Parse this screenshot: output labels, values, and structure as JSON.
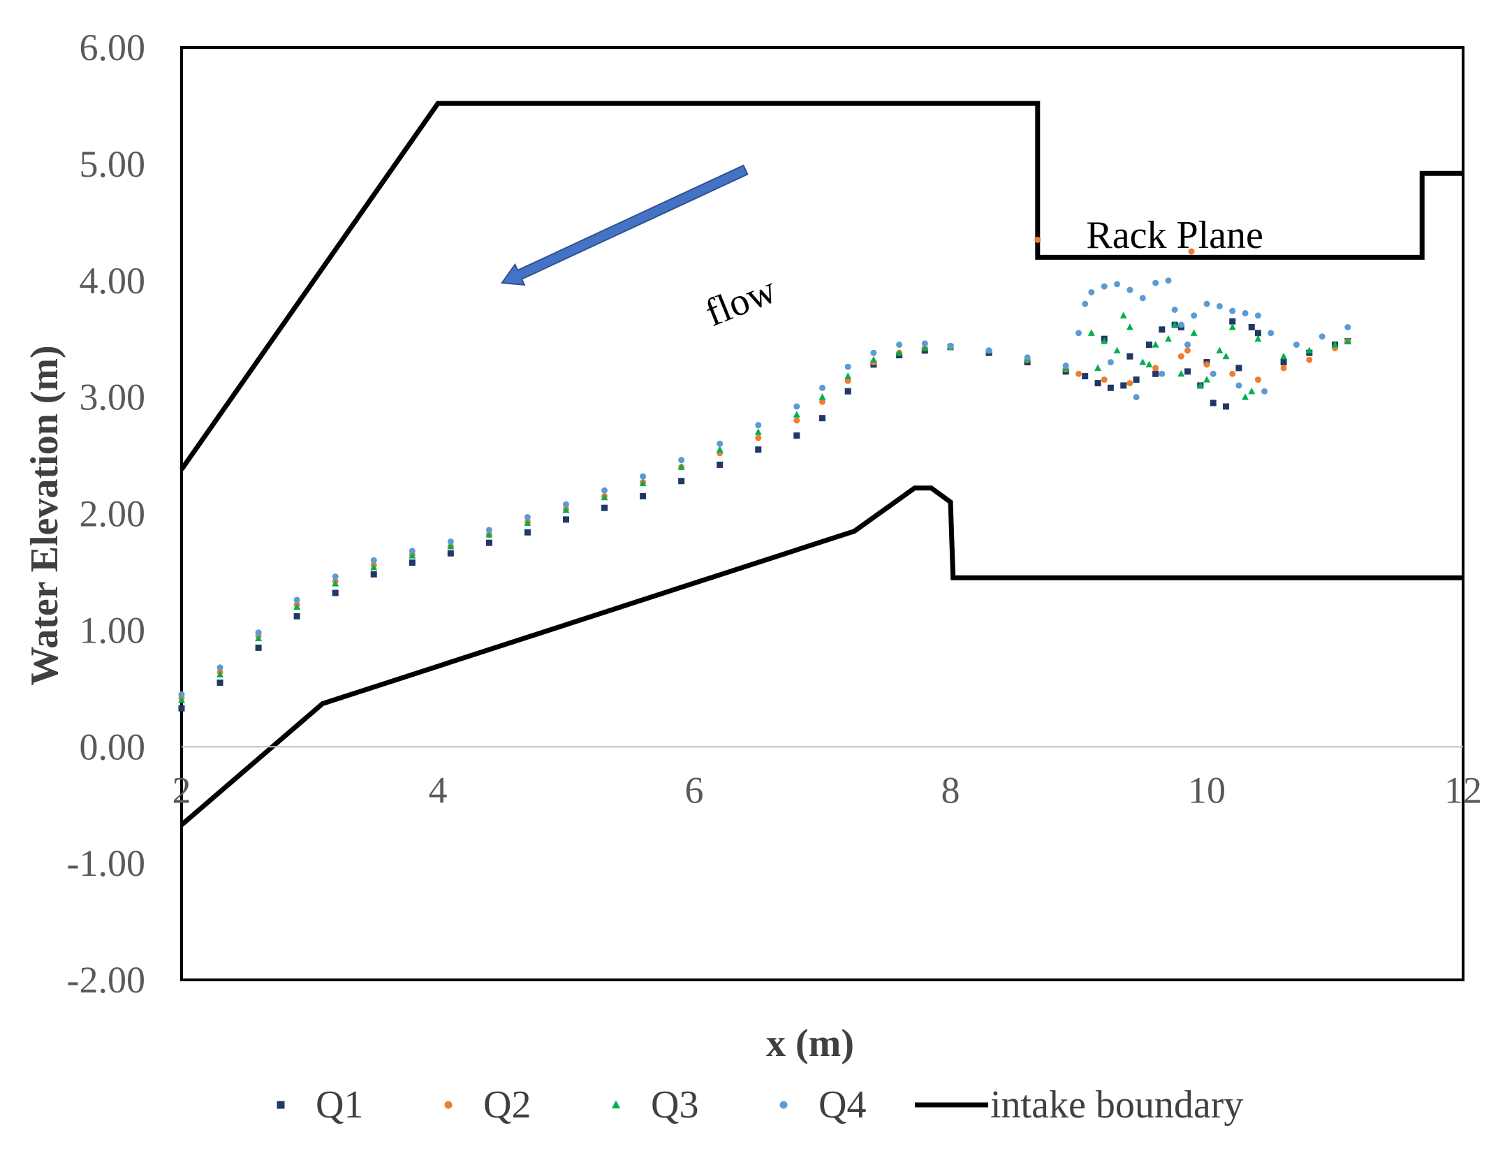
{
  "chart_data": {
    "type": "scatter",
    "xlabel": "x (m)",
    "ylabel": "Water Elevation (m)",
    "xlim": [
      2,
      12
    ],
    "ylim": [
      -2,
      6
    ],
    "x_ticks": [
      {
        "value": 2,
        "label": "2"
      },
      {
        "value": 4,
        "label": "4"
      },
      {
        "value": 6,
        "label": "6"
      },
      {
        "value": 8,
        "label": "8"
      },
      {
        "value": 10,
        "label": "10"
      },
      {
        "value": 12,
        "label": "12"
      }
    ],
    "y_ticks": [
      {
        "value": 6,
        "label": "6.00"
      },
      {
        "value": 5,
        "label": "5.00"
      },
      {
        "value": 4,
        "label": "4.00"
      },
      {
        "value": 3,
        "label": "3.00"
      },
      {
        "value": 2,
        "label": "2.00"
      },
      {
        "value": 1,
        "label": "1.00"
      },
      {
        "value": 0,
        "label": "0.00"
      },
      {
        "value": -1,
        "label": "-1.00"
      },
      {
        "value": -2,
        "label": "-2.00"
      }
    ],
    "gridlines": false,
    "legend_position": "bottom",
    "annotations": [
      {
        "text": "Rack Plane",
        "x": 9.75,
        "y": 4.28
      },
      {
        "text": "flow",
        "x": 6.4,
        "y": 3.72,
        "arrow_from": [
          6.4,
          4.95
        ],
        "arrow_to": [
          4.5,
          3.98
        ]
      }
    ],
    "series": [
      {
        "name": "Q1",
        "marker": "square",
        "color": "#203864",
        "x": [
          2.0,
          2.3,
          2.6,
          2.9,
          3.2,
          3.5,
          3.8,
          4.1,
          4.4,
          4.7,
          5.0,
          5.3,
          5.6,
          5.9,
          6.2,
          6.5,
          6.8,
          7.0,
          7.2,
          7.4,
          7.6,
          7.8,
          8.0,
          8.3,
          8.6,
          8.9,
          9.05,
          9.15,
          9.25,
          9.35,
          9.45,
          9.55,
          9.65,
          9.75,
          9.85,
          9.95,
          10.05,
          10.15,
          10.25,
          10.35,
          9.2,
          9.4,
          9.6,
          9.8,
          10.0,
          10.2,
          10.4,
          10.6,
          10.8,
          11.0,
          11.1
        ],
        "y": [
          0.33,
          0.55,
          0.85,
          1.12,
          1.32,
          1.48,
          1.58,
          1.66,
          1.75,
          1.84,
          1.95,
          2.05,
          2.15,
          2.28,
          2.42,
          2.55,
          2.67,
          2.82,
          3.05,
          3.28,
          3.36,
          3.4,
          3.43,
          3.38,
          3.3,
          3.22,
          3.18,
          3.12,
          3.08,
          3.1,
          3.15,
          3.45,
          3.58,
          3.62,
          3.22,
          3.1,
          2.95,
          2.92,
          3.25,
          3.6,
          3.5,
          3.35,
          3.2,
          3.6,
          3.3,
          3.65,
          3.55,
          3.3,
          3.38,
          3.45,
          3.48
        ]
      },
      {
        "name": "Q2",
        "marker": "circle",
        "color": "#ED7D31",
        "x": [
          2.0,
          2.3,
          2.6,
          2.9,
          3.2,
          3.5,
          3.8,
          4.1,
          4.4,
          4.7,
          5.0,
          5.3,
          5.6,
          5.9,
          6.2,
          6.5,
          6.8,
          7.0,
          7.2,
          7.4,
          7.6,
          7.8,
          8.0,
          8.3,
          8.6,
          8.9,
          9.0,
          9.2,
          9.4,
          9.6,
          9.8,
          10.0,
          10.2,
          10.4,
          10.6,
          10.8,
          11.0,
          11.1,
          8.68,
          9.88,
          9.85
        ],
        "y": [
          0.42,
          0.64,
          0.95,
          1.22,
          1.42,
          1.56,
          1.65,
          1.72,
          1.82,
          1.93,
          2.04,
          2.15,
          2.27,
          2.4,
          2.52,
          2.65,
          2.8,
          2.96,
          3.14,
          3.3,
          3.38,
          3.42,
          3.43,
          3.4,
          3.32,
          3.24,
          3.2,
          3.15,
          3.12,
          3.25,
          3.35,
          3.28,
          3.2,
          3.15,
          3.25,
          3.32,
          3.42,
          3.48,
          4.35,
          4.25,
          3.4
        ]
      },
      {
        "name": "Q3",
        "marker": "triangle",
        "color": "#00B050",
        "x": [
          2.0,
          2.3,
          2.6,
          2.9,
          3.2,
          3.5,
          3.8,
          4.1,
          4.4,
          4.7,
          5.0,
          5.3,
          5.6,
          5.9,
          6.2,
          6.5,
          6.8,
          7.0,
          7.2,
          7.4,
          7.6,
          7.8,
          8.0,
          8.3,
          8.6,
          8.9,
          9.1,
          9.2,
          9.3,
          9.4,
          9.5,
          9.6,
          9.7,
          9.8,
          9.9,
          10.0,
          10.1,
          10.2,
          10.3,
          10.4,
          9.15,
          9.35,
          9.55,
          9.75,
          9.95,
          10.15,
          10.35,
          10.6,
          10.8,
          11.0,
          11.1
        ],
        "y": [
          0.4,
          0.62,
          0.93,
          1.2,
          1.4,
          1.54,
          1.64,
          1.72,
          1.82,
          1.92,
          2.03,
          2.14,
          2.26,
          2.4,
          2.55,
          2.7,
          2.85,
          3.0,
          3.18,
          3.32,
          3.38,
          3.42,
          3.43,
          3.4,
          3.33,
          3.25,
          3.55,
          3.48,
          3.4,
          3.6,
          3.3,
          3.45,
          3.5,
          3.2,
          3.55,
          3.15,
          3.4,
          3.6,
          3.0,
          3.5,
          3.25,
          3.7,
          3.28,
          3.62,
          3.1,
          3.35,
          3.05,
          3.35,
          3.4,
          3.45,
          3.48
        ]
      },
      {
        "name": "Q4",
        "marker": "circle",
        "color": "#5B9BD5",
        "x": [
          2.0,
          2.3,
          2.6,
          2.9,
          3.2,
          3.5,
          3.8,
          4.1,
          4.4,
          4.7,
          5.0,
          5.3,
          5.6,
          5.9,
          6.2,
          6.5,
          6.8,
          7.0,
          7.2,
          7.4,
          7.6,
          7.8,
          8.0,
          8.3,
          8.6,
          8.9,
          9.0,
          9.05,
          9.1,
          9.2,
          9.3,
          9.4,
          9.5,
          9.6,
          9.7,
          9.75,
          9.8,
          9.9,
          10.0,
          10.1,
          10.2,
          10.3,
          10.4,
          10.5,
          9.25,
          9.45,
          9.65,
          9.85,
          10.05,
          10.25,
          10.45,
          10.7,
          10.9,
          11.1
        ],
        "y": [
          0.45,
          0.68,
          0.98,
          1.26,
          1.46,
          1.6,
          1.68,
          1.76,
          1.86,
          1.97,
          2.08,
          2.2,
          2.32,
          2.46,
          2.6,
          2.76,
          2.92,
          3.08,
          3.26,
          3.38,
          3.45,
          3.46,
          3.44,
          3.4,
          3.34,
          3.27,
          3.55,
          3.8,
          3.9,
          3.95,
          3.97,
          3.92,
          3.85,
          3.98,
          4.0,
          3.75,
          3.62,
          3.7,
          3.8,
          3.78,
          3.74,
          3.72,
          3.7,
          3.55,
          3.3,
          3.0,
          3.2,
          3.45,
          3.2,
          3.1,
          3.05,
          3.45,
          3.52,
          3.6
        ]
      },
      {
        "name": "intake boundary",
        "type": "line",
        "color": "#000000",
        "segments": [
          {
            "x": [
              2,
              4,
              8.68,
              8.68,
              8.68,
              8.68,
              11.68,
              11.68,
              12
            ],
            "y": [
              2.38,
              5.52,
              5.52,
              4.82,
              4.2,
              4.2,
              4.2,
              4.92,
              4.92
            ]
          },
          {
            "x": [
              2,
              3.1,
              7.25,
              7.72,
              7.85,
              8.0,
              8.02,
              12
            ],
            "y": [
              -0.67,
              0.37,
              1.85,
              2.22,
              2.22,
              2.1,
              1.45,
              1.45
            ]
          }
        ]
      }
    ]
  }
}
